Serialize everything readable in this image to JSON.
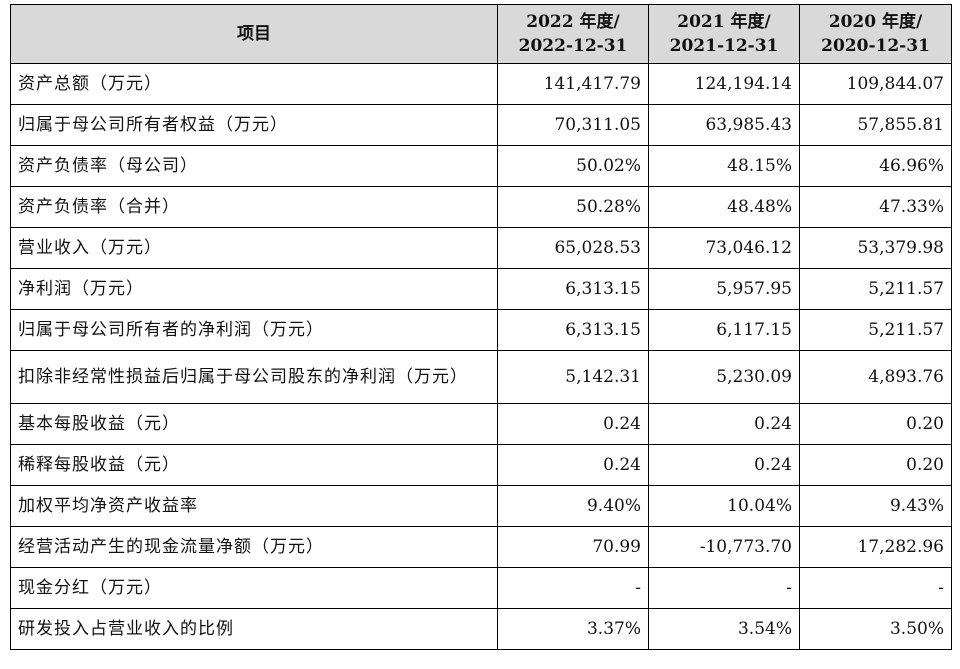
{
  "table": {
    "header": {
      "item": "项目",
      "columns": [
        {
          "line1": "2022 年度/",
          "line2": "2022-12-31"
        },
        {
          "line1": "2021 年度/",
          "line2": "2021-12-31"
        },
        {
          "line1": "2020 年度/",
          "line2": "2020-12-31"
        }
      ]
    },
    "rows": [
      {
        "label": "资产总额（万元）",
        "values": [
          "141,417.79",
          "124,194.14",
          "109,844.07"
        ]
      },
      {
        "label": "归属于母公司所有者权益（万元）",
        "values": [
          "70,311.05",
          "63,985.43",
          "57,855.81"
        ]
      },
      {
        "label": "资产负债率（母公司）",
        "values": [
          "50.02%",
          "48.15%",
          "46.96%"
        ]
      },
      {
        "label": "资产负债率（合并）",
        "values": [
          "50.28%",
          "48.48%",
          "47.33%"
        ]
      },
      {
        "label": "营业收入（万元）",
        "values": [
          "65,028.53",
          "73,046.12",
          "53,379.98"
        ]
      },
      {
        "label": "净利润（万元）",
        "values": [
          "6,313.15",
          "5,957.95",
          "5,211.57"
        ]
      },
      {
        "label": "归属于母公司所有者的净利润（万元）",
        "values": [
          "6,313.15",
          "6,117.15",
          "5,211.57"
        ]
      },
      {
        "label": "扣除非经常性损益后归属于母公司股东的净利润（万元）",
        "values": [
          "5,142.31",
          "5,230.09",
          "4,893.76"
        ]
      },
      {
        "label": "基本每股收益（元）",
        "values": [
          "0.24",
          "0.24",
          "0.20"
        ]
      },
      {
        "label": "稀释每股收益（元）",
        "values": [
          "0.24",
          "0.24",
          "0.20"
        ]
      },
      {
        "label": "加权平均净资产收益率",
        "values": [
          "9.40%",
          "10.04%",
          "9.43%"
        ]
      },
      {
        "label": "经营活动产生的现金流量净额（万元）",
        "values": [
          "70.99",
          "-10,773.70",
          "17,282.96"
        ]
      },
      {
        "label": "现金分红（万元）",
        "values": [
          "-",
          "-",
          "-"
        ]
      },
      {
        "label": "研发投入占营业收入的比例",
        "values": [
          "3.37%",
          "3.54%",
          "3.50%"
        ]
      }
    ]
  }
}
